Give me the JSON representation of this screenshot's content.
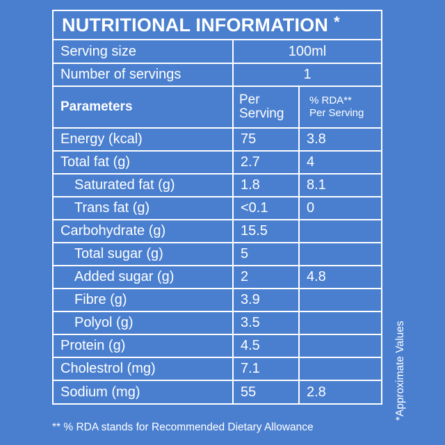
{
  "label": {
    "title": "NUTRITIONAL INFORMATION",
    "title_mark": "*",
    "serving_size_label": "Serving size",
    "serving_size_value": "100ml",
    "servings_label": "Number of servings",
    "servings_value": "1",
    "columns": {
      "parameters": "Parameters",
      "per_serving_line1": "Per",
      "per_serving_line2": "Serving",
      "rda_line1": "% RDA**",
      "rda_line2": "Per Serving"
    },
    "rows": [
      {
        "name": "Energy (kcal)",
        "per_serving": "75",
        "rda": "3.8"
      },
      {
        "name": "Total fat (g)",
        "per_serving": "2.7",
        "rda": "4"
      },
      {
        "name": "Saturated fat (g)",
        "per_serving": "1.8",
        "rda": "8.1"
      },
      {
        "name": "Trans fat (g)",
        "per_serving": "<0.1",
        "rda": "0"
      },
      {
        "name": "Carbohydrate (g)",
        "per_serving": "15.5",
        "rda": ""
      },
      {
        "name": "Total sugar (g)",
        "per_serving": "5",
        "rda": ""
      },
      {
        "name": "Added sugar (g)",
        "per_serving": "2",
        "rda": "4.8"
      },
      {
        "name": "Fibre (g)",
        "per_serving": "3.9",
        "rda": ""
      },
      {
        "name": "Polyol (g)",
        "per_serving": "3.5",
        "rda": ""
      },
      {
        "name": "Protein (g)",
        "per_serving": "4.5",
        "rda": ""
      },
      {
        "name": "Cholestrol (mg)",
        "per_serving": "7.1",
        "rda": ""
      },
      {
        "name": "Sodium (mg)",
        "per_serving": "55",
        "rda": "2.8"
      }
    ],
    "footnote": "** % RDA stands for Recommended Dietary Allowance",
    "side_note": "*Approximate Values"
  },
  "colors": {
    "background": "#4a7fcf",
    "text_and_lines": "#ffffff"
  }
}
